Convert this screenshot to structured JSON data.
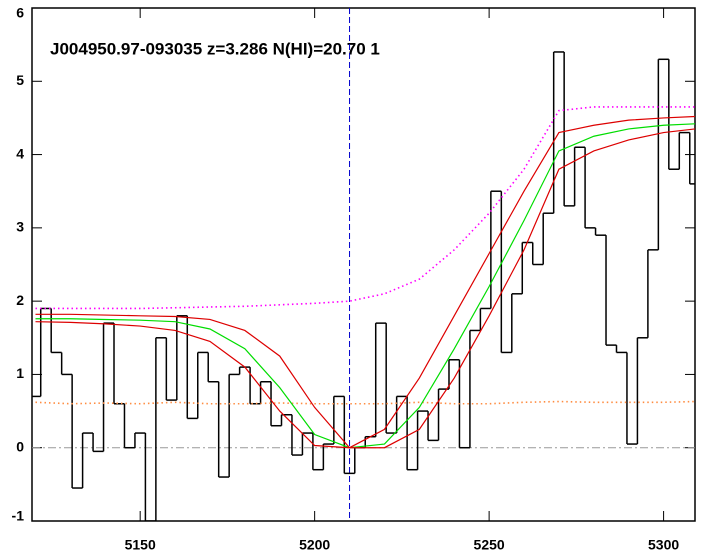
{
  "chart_data": {
    "type": "spectrum",
    "title": "J004950.97-093035 z=3.286 N(HI)=20.70 1",
    "xlim": [
      5119,
      5309
    ],
    "ylim": [
      -1,
      6
    ],
    "xticks": [
      5150,
      5200,
      5250,
      5300
    ],
    "yticks": [
      -1,
      0,
      1,
      2,
      3,
      4,
      5,
      6
    ],
    "marker_x": 5210,
    "flux": {
      "color": "#000000",
      "x": [
        5120,
        5123,
        5126,
        5129,
        5132,
        5135,
        5138,
        5141,
        5144,
        5147,
        5150,
        5153,
        5156,
        5159,
        5162,
        5165,
        5168,
        5171,
        5174,
        5177,
        5180,
        5183,
        5186,
        5189,
        5192,
        5195,
        5198,
        5201,
        5204,
        5207,
        5210,
        5213,
        5216,
        5219,
        5222,
        5225,
        5228,
        5231,
        5234,
        5237,
        5240,
        5243,
        5246,
        5249,
        5252,
        5255,
        5258,
        5261,
        5264,
        5267,
        5270,
        5273,
        5276,
        5279,
        5282,
        5285,
        5288,
        5291,
        5294,
        5297,
        5300,
        5303,
        5306,
        5309
      ],
      "values": [
        0.7,
        1.9,
        1.3,
        1.0,
        -0.55,
        0.2,
        -0.05,
        1.7,
        0.6,
        0.0,
        0.2,
        -1.0,
        1.5,
        0.65,
        1.8,
        0.4,
        1.3,
        0.9,
        -0.4,
        1.0,
        1.1,
        0.6,
        0.9,
        0.3,
        0.45,
        -0.1,
        0.2,
        -0.3,
        0.05,
        0.7,
        -0.35,
        0.0,
        0.15,
        1.7,
        0.2,
        0.7,
        -0.3,
        0.5,
        0.1,
        0.8,
        1.2,
        0.0,
        1.6,
        1.9,
        3.5,
        1.3,
        2.1,
        2.8,
        2.5,
        3.2,
        5.4,
        3.3,
        4.1,
        3.0,
        2.9,
        1.4,
        1.3,
        0.05,
        1.5,
        2.7,
        5.3,
        3.8,
        4.3,
        3.6
      ]
    },
    "series": [
      {
        "color": "#ff00ff",
        "dash": "dot",
        "x": [
          5120,
          5130,
          5140,
          5150,
          5160,
          5170,
          5180,
          5190,
          5200,
          5210,
          5220,
          5230,
          5240,
          5250,
          5260,
          5270,
          5280,
          5290,
          5300,
          5309
        ],
        "values": [
          1.9,
          1.9,
          1.9,
          1.9,
          1.91,
          1.92,
          1.93,
          1.95,
          1.97,
          2.0,
          2.1,
          2.3,
          2.7,
          3.2,
          3.8,
          4.6,
          4.65,
          4.65,
          4.65,
          4.65
        ]
      },
      {
        "color": "#ff8c40",
        "dash": "dot",
        "x": [
          5120,
          5130,
          5140,
          5150,
          5160,
          5170,
          5180,
          5190,
          5200,
          5210,
          5220,
          5230,
          5240,
          5250,
          5260,
          5270,
          5280,
          5290,
          5300,
          5309
        ],
        "values": [
          0.62,
          0.6,
          0.61,
          0.6,
          0.62,
          0.6,
          0.6,
          0.61,
          0.6,
          0.6,
          0.6,
          0.62,
          0.6,
          0.6,
          0.62,
          0.63,
          0.62,
          0.62,
          0.62,
          0.63
        ]
      },
      {
        "color": "#00dd00",
        "dash": "solid",
        "x": [
          5120,
          5130,
          5140,
          5150,
          5160,
          5170,
          5180,
          5190,
          5200,
          5210,
          5220,
          5230,
          5240,
          5250,
          5260,
          5270,
          5280,
          5290,
          5300,
          5309
        ],
        "values": [
          1.76,
          1.76,
          1.75,
          1.74,
          1.72,
          1.62,
          1.35,
          0.82,
          0.18,
          0.0,
          0.05,
          0.55,
          1.35,
          2.2,
          3.1,
          4.05,
          4.25,
          4.35,
          4.4,
          4.42
        ]
      },
      {
        "color": "#dd0000",
        "dash": "solid",
        "x": [
          5120,
          5130,
          5140,
          5150,
          5160,
          5170,
          5180,
          5190,
          5200,
          5210,
          5220,
          5230,
          5240,
          5250,
          5260,
          5270,
          5280,
          5290,
          5300,
          5309
        ],
        "values": [
          1.82,
          1.82,
          1.81,
          1.8,
          1.79,
          1.75,
          1.6,
          1.25,
          0.55,
          0.0,
          0.25,
          0.95,
          1.8,
          2.65,
          3.5,
          4.3,
          4.4,
          4.47,
          4.5,
          4.52
        ]
      },
      {
        "color": "#dd0000",
        "dash": "solid",
        "x": [
          5120,
          5130,
          5140,
          5150,
          5160,
          5170,
          5180,
          5190,
          5200,
          5210,
          5220,
          5230,
          5240,
          5250,
          5260,
          5270,
          5280,
          5290,
          5300,
          5309
        ],
        "values": [
          1.72,
          1.71,
          1.69,
          1.66,
          1.6,
          1.45,
          1.1,
          0.5,
          0.03,
          0.0,
          0.0,
          0.25,
          0.95,
          1.8,
          2.7,
          3.8,
          4.05,
          4.2,
          4.3,
          4.35
        ]
      }
    ]
  }
}
